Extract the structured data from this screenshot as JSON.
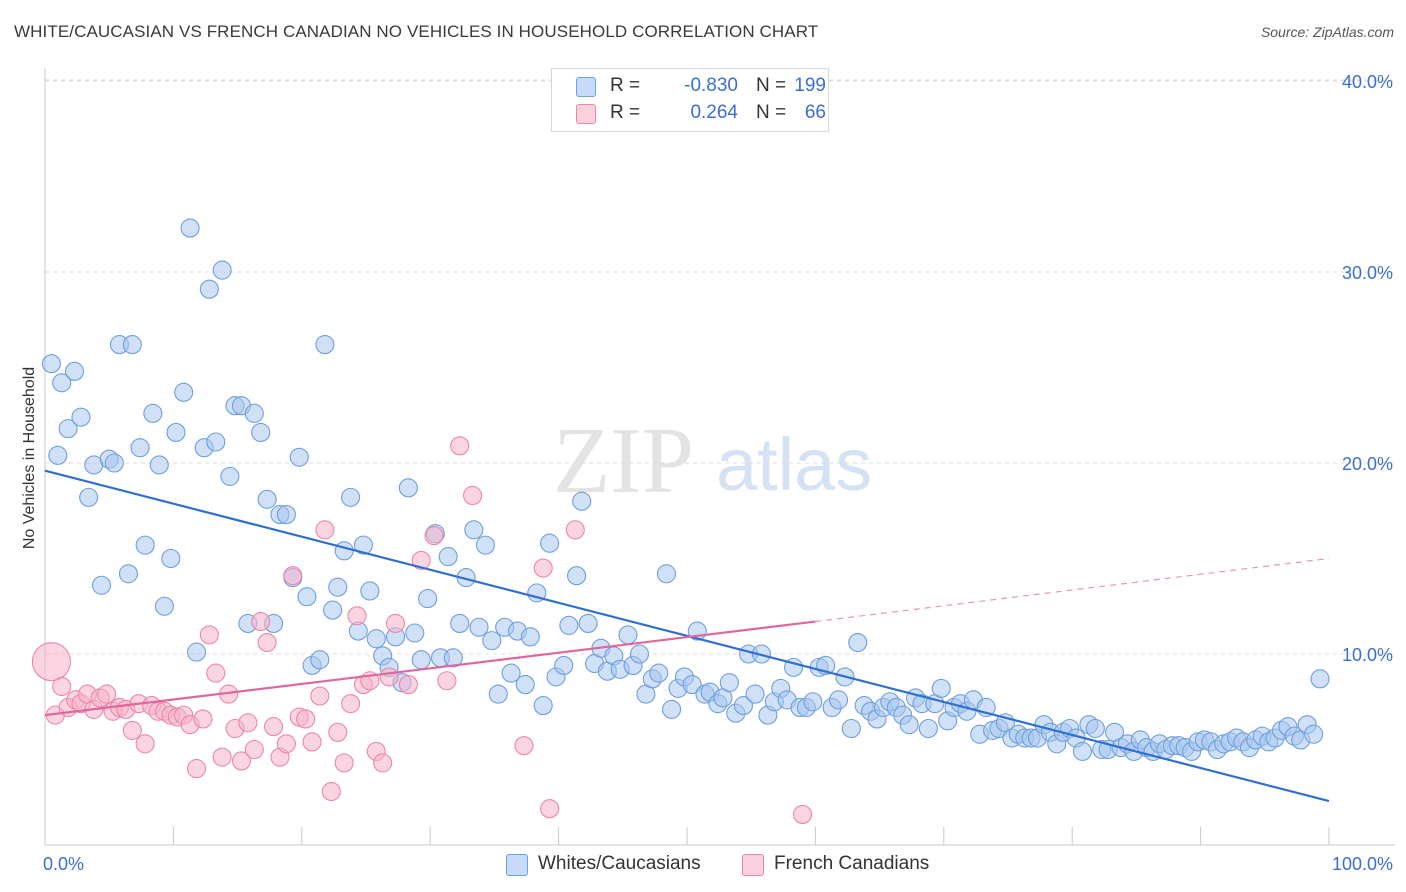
{
  "title": "WHITE/CAUCASIAN VS FRENCH CANADIAN NO VEHICLES IN HOUSEHOLD CORRELATION CHART",
  "source": "Source: ZipAtlas.com",
  "watermark": {
    "zip": "ZIP",
    "atlas": "atlas"
  },
  "legend": {
    "r_label": "R =",
    "n_label": "N =",
    "rows": [
      {
        "r": "-0.830",
        "n": "199",
        "color": "#a8c6f0"
      },
      {
        "r": "0.264",
        "n": "66",
        "color": "#f5b3c8"
      }
    ]
  },
  "chart_data": {
    "type": "scatter",
    "title": "WHITE/CAUCASIAN VS FRENCH CANADIAN NO VEHICLES IN HOUSEHOLD CORRELATION CHART",
    "xlabel": "",
    "ylabel": "No Vehicles in Household",
    "xlim": [
      0,
      100
    ],
    "ylim": [
      0,
      41
    ],
    "x_tick_labels": [
      "0.0%",
      "100.0%"
    ],
    "y_ticks": [
      10,
      20,
      30,
      40
    ],
    "y_tick_labels": [
      "10.0%",
      "20.0%",
      "30.0%",
      "40.0%"
    ],
    "grid": "horizontal dashed",
    "legend_position": "top-center",
    "series": [
      {
        "name": "Whites/Caucasians",
        "color": "#a8c6f0",
        "stroke": "#6f9fdc",
        "trend": {
          "x": [
            0,
            100
          ],
          "y": [
            19.6,
            2.3
          ],
          "color": "#2f6fd0"
        },
        "points": [
          [
            0.5,
            25.2
          ],
          [
            1.0,
            20.4
          ],
          [
            1.3,
            24.2
          ],
          [
            1.8,
            21.8
          ],
          [
            2.3,
            24.8
          ],
          [
            2.8,
            22.4
          ],
          [
            3.4,
            18.2
          ],
          [
            3.8,
            19.9
          ],
          [
            4.4,
            13.6
          ],
          [
            5.0,
            20.2
          ],
          [
            5.4,
            20.0
          ],
          [
            5.8,
            26.2
          ],
          [
            6.5,
            14.2
          ],
          [
            6.8,
            26.2
          ],
          [
            7.4,
            20.8
          ],
          [
            7.8,
            15.7
          ],
          [
            8.4,
            22.6
          ],
          [
            8.9,
            19.9
          ],
          [
            9.3,
            12.5
          ],
          [
            9.8,
            15.0
          ],
          [
            10.2,
            21.6
          ],
          [
            10.8,
            23.7
          ],
          [
            11.3,
            32.3
          ],
          [
            11.8,
            10.1
          ],
          [
            12.4,
            20.8
          ],
          [
            12.8,
            29.1
          ],
          [
            13.3,
            21.1
          ],
          [
            13.8,
            30.1
          ],
          [
            14.4,
            19.3
          ],
          [
            14.8,
            23.0
          ],
          [
            15.3,
            23.0
          ],
          [
            15.8,
            11.6
          ],
          [
            16.3,
            22.6
          ],
          [
            16.8,
            21.6
          ],
          [
            17.3,
            18.1
          ],
          [
            17.8,
            11.6
          ],
          [
            18.3,
            17.3
          ],
          [
            18.8,
            17.3
          ],
          [
            19.3,
            14.0
          ],
          [
            19.8,
            20.3
          ],
          [
            20.4,
            13.0
          ],
          [
            20.8,
            9.4
          ],
          [
            21.4,
            9.7
          ],
          [
            21.8,
            26.2
          ],
          [
            22.4,
            12.3
          ],
          [
            22.8,
            13.5
          ],
          [
            23.3,
            15.4
          ],
          [
            23.8,
            18.2
          ],
          [
            24.4,
            11.2
          ],
          [
            24.8,
            15.7
          ],
          [
            25.3,
            13.3
          ],
          [
            25.8,
            10.8
          ],
          [
            26.3,
            9.9
          ],
          [
            26.8,
            9.3
          ],
          [
            27.3,
            10.9
          ],
          [
            27.8,
            8.5
          ],
          [
            28.3,
            18.7
          ],
          [
            28.8,
            11.1
          ],
          [
            29.3,
            9.7
          ],
          [
            29.8,
            12.9
          ],
          [
            30.4,
            16.3
          ],
          [
            30.8,
            9.8
          ],
          [
            31.4,
            15.1
          ],
          [
            31.8,
            9.8
          ],
          [
            32.3,
            11.6
          ],
          [
            32.8,
            14.0
          ],
          [
            33.4,
            16.5
          ],
          [
            33.8,
            11.4
          ],
          [
            34.3,
            15.7
          ],
          [
            34.8,
            10.7
          ],
          [
            35.3,
            7.9
          ],
          [
            35.8,
            11.4
          ],
          [
            36.3,
            9.0
          ],
          [
            36.8,
            11.2
          ],
          [
            37.4,
            8.4
          ],
          [
            37.8,
            10.9
          ],
          [
            38.3,
            13.2
          ],
          [
            38.8,
            7.3
          ],
          [
            39.3,
            15.8
          ],
          [
            39.8,
            8.8
          ],
          [
            40.4,
            9.4
          ],
          [
            40.8,
            11.5
          ],
          [
            41.4,
            14.1
          ],
          [
            41.8,
            18.0
          ],
          [
            42.3,
            11.6
          ],
          [
            42.8,
            9.5
          ],
          [
            43.3,
            10.3
          ],
          [
            43.8,
            9.1
          ],
          [
            44.3,
            9.9
          ],
          [
            44.8,
            9.2
          ],
          [
            45.4,
            11.0
          ],
          [
            45.8,
            9.4
          ],
          [
            46.3,
            10.0
          ],
          [
            46.8,
            7.9
          ],
          [
            47.3,
            8.7
          ],
          [
            47.8,
            9.0
          ],
          [
            48.4,
            14.2
          ],
          [
            48.8,
            7.1
          ],
          [
            49.3,
            8.2
          ],
          [
            49.8,
            8.8
          ],
          [
            50.4,
            8.4
          ],
          [
            50.8,
            11.2
          ],
          [
            51.4,
            7.9
          ],
          [
            51.8,
            8.0
          ],
          [
            52.4,
            7.4
          ],
          [
            52.8,
            7.7
          ],
          [
            53.3,
            8.5
          ],
          [
            53.8,
            6.9
          ],
          [
            54.4,
            7.3
          ],
          [
            54.8,
            10.0
          ],
          [
            55.3,
            7.9
          ],
          [
            55.8,
            10.0
          ],
          [
            56.3,
            6.8
          ],
          [
            56.8,
            7.5
          ],
          [
            57.3,
            8.2
          ],
          [
            57.8,
            7.6
          ],
          [
            58.3,
            9.3
          ],
          [
            58.8,
            7.2
          ],
          [
            59.3,
            7.2
          ],
          [
            59.8,
            7.5
          ],
          [
            60.3,
            9.3
          ],
          [
            60.8,
            9.4
          ],
          [
            61.3,
            7.2
          ],
          [
            61.8,
            7.6
          ],
          [
            62.3,
            8.8
          ],
          [
            62.8,
            6.1
          ],
          [
            63.3,
            10.6
          ],
          [
            63.8,
            7.3
          ],
          [
            64.3,
            7.0
          ],
          [
            64.8,
            6.6
          ],
          [
            65.3,
            7.2
          ],
          [
            65.8,
            7.5
          ],
          [
            66.3,
            7.2
          ],
          [
            66.8,
            6.8
          ],
          [
            67.3,
            6.3
          ],
          [
            67.8,
            7.7
          ],
          [
            68.3,
            7.4
          ],
          [
            68.8,
            6.1
          ],
          [
            69.3,
            7.4
          ],
          [
            69.8,
            8.2
          ],
          [
            70.3,
            6.5
          ],
          [
            70.8,
            7.2
          ],
          [
            71.3,
            7.4
          ],
          [
            71.8,
            7.0
          ],
          [
            72.3,
            7.6
          ],
          [
            72.8,
            5.8
          ],
          [
            73.3,
            7.2
          ],
          [
            73.8,
            6.0
          ],
          [
            74.3,
            6.1
          ],
          [
            74.8,
            6.4
          ],
          [
            75.3,
            5.6
          ],
          [
            75.8,
            5.8
          ],
          [
            76.3,
            5.6
          ],
          [
            76.8,
            5.6
          ],
          [
            77.3,
            5.6
          ],
          [
            77.8,
            6.3
          ],
          [
            78.3,
            5.9
          ],
          [
            78.8,
            5.3
          ],
          [
            79.3,
            5.9
          ],
          [
            79.8,
            6.1
          ],
          [
            80.3,
            5.6
          ],
          [
            80.8,
            4.9
          ],
          [
            81.3,
            6.3
          ],
          [
            81.8,
            6.1
          ],
          [
            82.3,
            5.0
          ],
          [
            82.8,
            5.0
          ],
          [
            83.3,
            5.9
          ],
          [
            83.8,
            5.1
          ],
          [
            84.3,
            5.3
          ],
          [
            84.8,
            4.9
          ],
          [
            85.3,
            5.5
          ],
          [
            85.8,
            5.1
          ],
          [
            86.3,
            4.9
          ],
          [
            86.8,
            5.3
          ],
          [
            87.3,
            5.0
          ],
          [
            87.8,
            5.2
          ],
          [
            88.3,
            5.2
          ],
          [
            88.8,
            5.1
          ],
          [
            89.3,
            4.9
          ],
          [
            89.8,
            5.4
          ],
          [
            90.3,
            5.5
          ],
          [
            90.8,
            5.4
          ],
          [
            91.3,
            5.0
          ],
          [
            91.8,
            5.3
          ],
          [
            92.3,
            5.4
          ],
          [
            92.8,
            5.6
          ],
          [
            93.3,
            5.4
          ],
          [
            93.8,
            5.1
          ],
          [
            94.3,
            5.5
          ],
          [
            94.8,
            5.7
          ],
          [
            95.3,
            5.4
          ],
          [
            95.8,
            5.6
          ],
          [
            96.3,
            6.0
          ],
          [
            96.8,
            6.2
          ],
          [
            97.3,
            5.7
          ],
          [
            97.8,
            5.5
          ],
          [
            98.3,
            6.3
          ],
          [
            98.8,
            5.8
          ],
          [
            99.3,
            8.7
          ]
        ]
      },
      {
        "name": "French Canadians",
        "color": "#f5b3c8",
        "stroke": "#ec86a7",
        "trend": {
          "x": [
            0,
            60
          ],
          "y": [
            6.8,
            11.7
          ],
          "color": "#e0679a"
        },
        "trend_dashed": {
          "x": [
            60,
            100
          ],
          "y": [
            11.7,
            15.0
          ]
        },
        "points": [
          [
            0.5,
            9.6
          ],
          [
            0.8,
            6.8
          ],
          [
            1.3,
            8.3
          ],
          [
            1.8,
            7.2
          ],
          [
            2.4,
            7.6
          ],
          [
            2.8,
            7.4
          ],
          [
            3.3,
            7.9
          ],
          [
            3.8,
            7.1
          ],
          [
            4.3,
            7.7
          ],
          [
            4.8,
            7.9
          ],
          [
            5.3,
            7.0
          ],
          [
            5.8,
            7.2
          ],
          [
            6.3,
            7.1
          ],
          [
            6.8,
            6.0
          ],
          [
            7.3,
            7.4
          ],
          [
            7.8,
            5.3
          ],
          [
            8.3,
            7.3
          ],
          [
            8.8,
            7.0
          ],
          [
            9.3,
            7.0
          ],
          [
            9.8,
            6.8
          ],
          [
            10.3,
            6.7
          ],
          [
            10.8,
            6.8
          ],
          [
            11.3,
            6.3
          ],
          [
            11.8,
            4.0
          ],
          [
            12.3,
            6.6
          ],
          [
            12.8,
            11.0
          ],
          [
            13.3,
            9.0
          ],
          [
            13.8,
            4.6
          ],
          [
            14.3,
            7.9
          ],
          [
            14.8,
            6.1
          ],
          [
            15.3,
            4.4
          ],
          [
            15.8,
            6.4
          ],
          [
            16.3,
            5.0
          ],
          [
            16.8,
            11.7
          ],
          [
            17.3,
            10.6
          ],
          [
            17.8,
            6.2
          ],
          [
            18.3,
            4.6
          ],
          [
            18.8,
            5.3
          ],
          [
            19.3,
            14.1
          ],
          [
            19.8,
            6.7
          ],
          [
            20.3,
            6.6
          ],
          [
            20.8,
            5.4
          ],
          [
            21.4,
            7.8
          ],
          [
            21.8,
            16.5
          ],
          [
            22.3,
            2.8
          ],
          [
            22.8,
            5.9
          ],
          [
            23.3,
            4.3
          ],
          [
            23.8,
            7.4
          ],
          [
            24.3,
            12.0
          ],
          [
            24.8,
            8.4
          ],
          [
            25.3,
            8.6
          ],
          [
            25.8,
            4.9
          ],
          [
            26.3,
            4.3
          ],
          [
            26.8,
            8.8
          ],
          [
            27.3,
            11.6
          ],
          [
            28.3,
            8.4
          ],
          [
            29.3,
            14.9
          ],
          [
            30.3,
            16.2
          ],
          [
            31.3,
            8.6
          ],
          [
            32.3,
            20.9
          ],
          [
            33.3,
            18.3
          ],
          [
            37.3,
            5.2
          ],
          [
            38.8,
            14.5
          ],
          [
            39.3,
            1.9
          ],
          [
            41.3,
            16.5
          ],
          [
            59.0,
            1.6
          ]
        ]
      }
    ]
  },
  "bottom_legend": [
    {
      "label": "Whites/Caucasians",
      "color": "#a8c6f0"
    },
    {
      "label": "French Canadians",
      "color": "#f5b3c8"
    }
  ]
}
